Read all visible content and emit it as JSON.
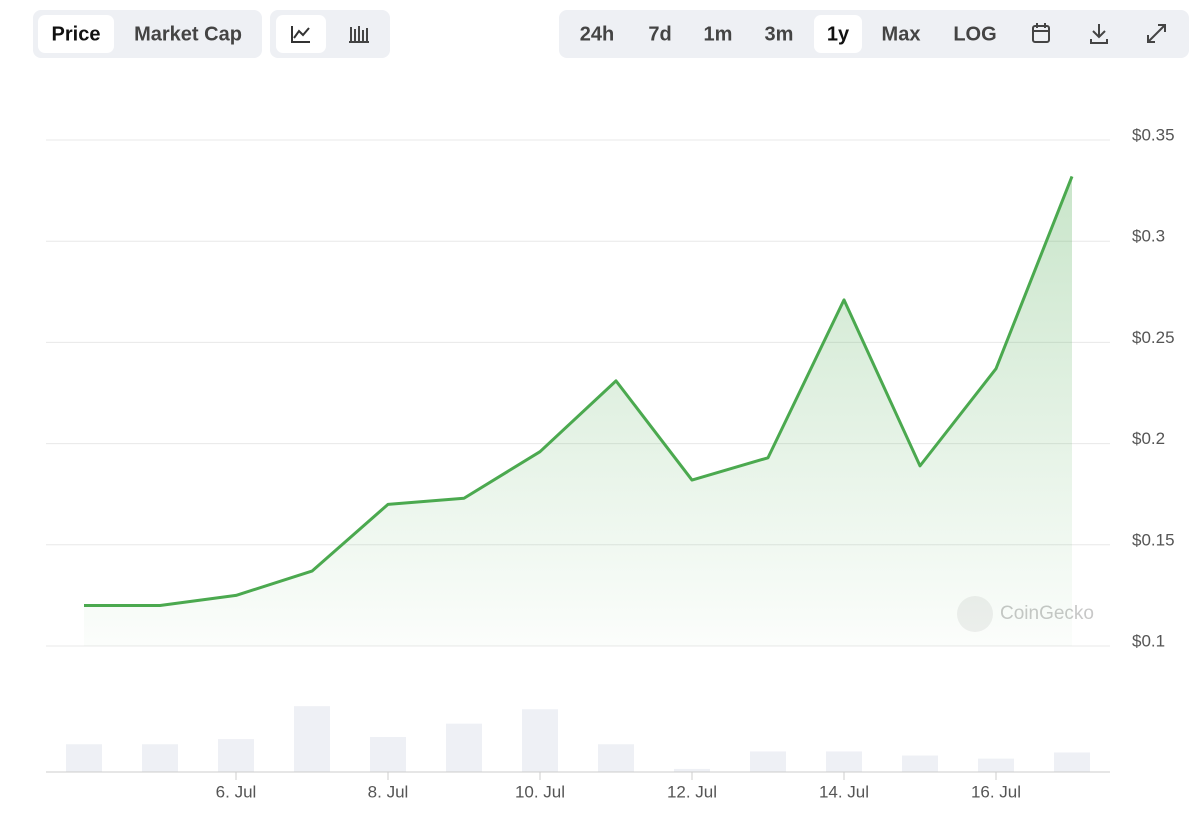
{
  "toolbar": {
    "metric_buttons": [
      "Price",
      "Market Cap"
    ],
    "active_metric": 0,
    "range_buttons": [
      "24h",
      "7d",
      "1m",
      "3m",
      "1y",
      "Max",
      "LOG"
    ],
    "active_range": 4
  },
  "watermark": "CoinGecko",
  "chart_data": {
    "type": "line",
    "categories": [
      null,
      null,
      "6. Jul",
      null,
      "8. Jul",
      null,
      "10. Jul",
      null,
      "12. Jul",
      null,
      "14. Jul",
      null,
      "16. Jul",
      null
    ],
    "values": [
      0.12,
      0.12,
      0.125,
      0.137,
      0.17,
      0.173,
      0.196,
      0.231,
      0.182,
      0.193,
      0.271,
      0.189,
      0.237,
      0.332
    ],
    "color": "#4ba94f",
    "bar_values": [
      27,
      27,
      32,
      64,
      34,
      47,
      61,
      27,
      3,
      20,
      20,
      16,
      13,
      19
    ],
    "bar_color": "#eef0f5",
    "ylim": [
      0.1,
      0.35
    ],
    "yticks": [
      {
        "value": 0.1,
        "label": "$0.1"
      },
      {
        "value": 0.15,
        "label": "$0.15"
      },
      {
        "value": 0.2,
        "label": "$0.2"
      },
      {
        "value": 0.25,
        "label": "$0.25"
      },
      {
        "value": 0.3,
        "label": "$0.3"
      },
      {
        "value": 0.35,
        "label": "$0.35"
      }
    ],
    "y2lim": [
      0,
      70
    ],
    "grid": true
  }
}
